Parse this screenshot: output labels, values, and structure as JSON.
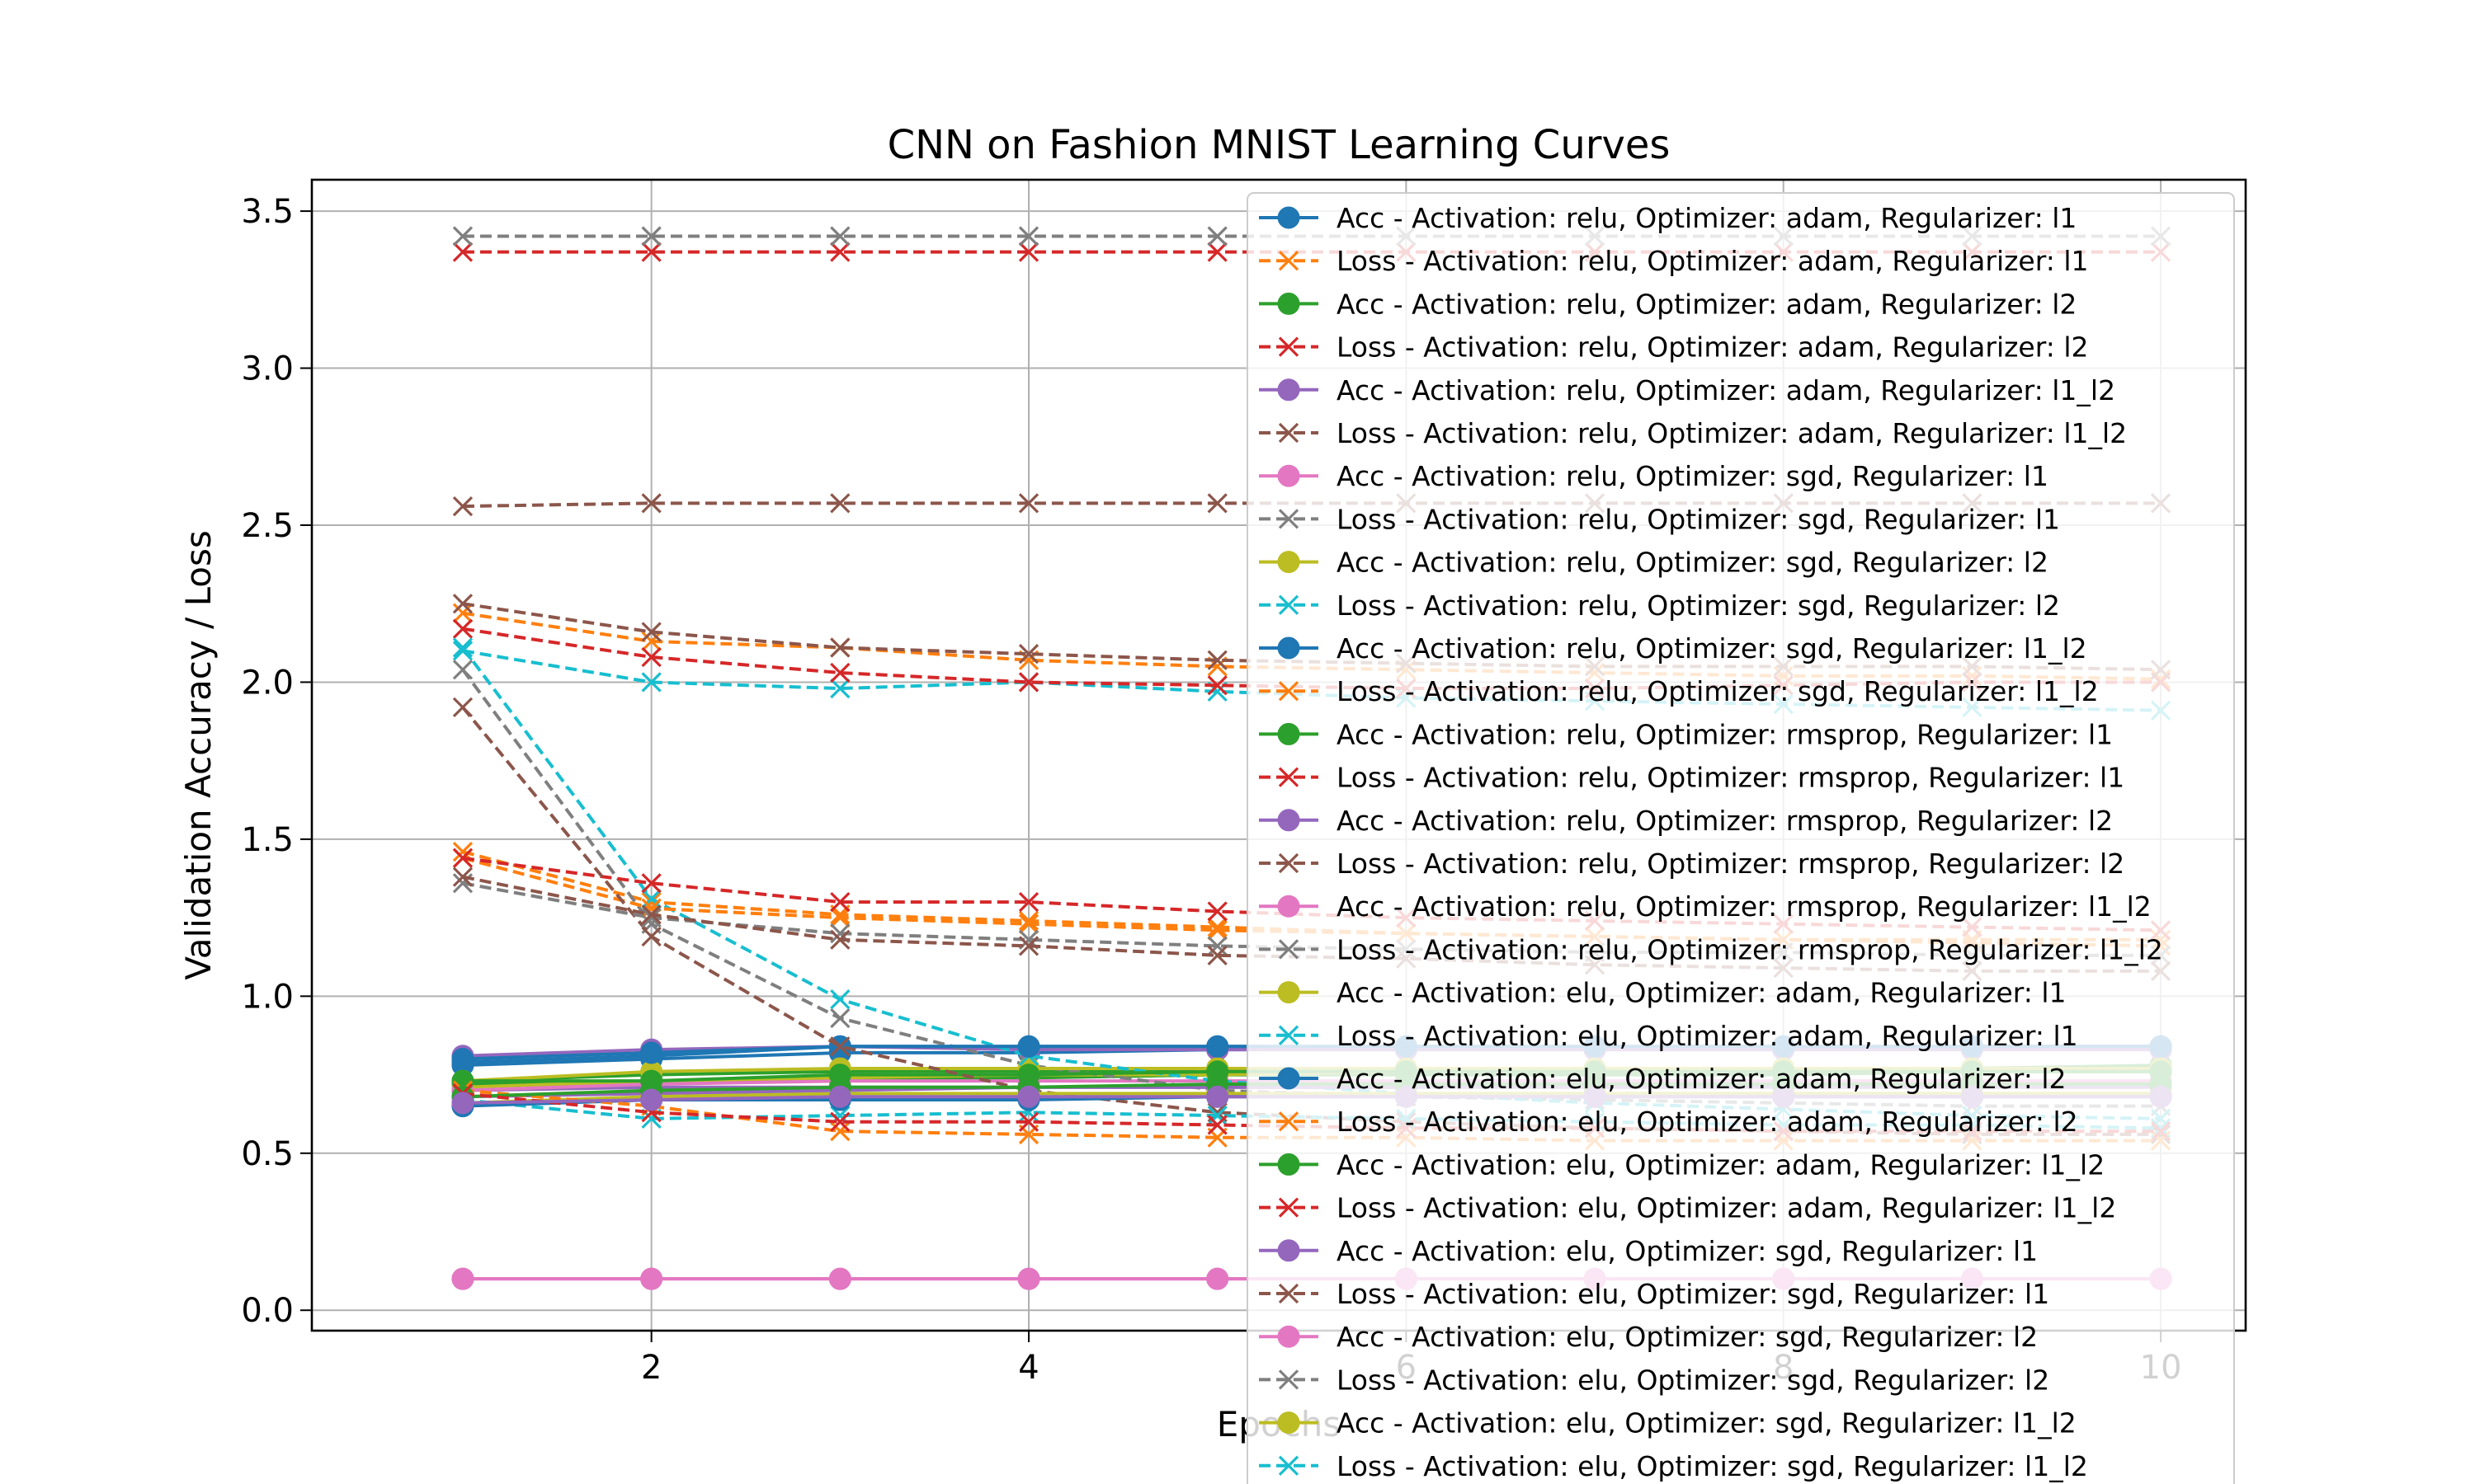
{
  "chart_data": {
    "type": "line",
    "title": "CNN on Fashion MNIST Learning Curves",
    "xlabel": "Epochs",
    "ylabel": "Validation Accuracy / Loss",
    "xlim": [
      0.2,
      10.45
    ],
    "ylim": [
      -0.065,
      3.6
    ],
    "xticks": [
      2,
      4,
      6,
      8,
      10
    ],
    "yticks": [
      0.0,
      0.5,
      1.0,
      1.5,
      2.0,
      2.5,
      3.0,
      3.5
    ],
    "grid": true,
    "legend_position": "top-right",
    "x": [
      1,
      2,
      3,
      4,
      5,
      6,
      7,
      8,
      9,
      10
    ],
    "series": [
      {
        "name": "Acc - Activation: relu, Optimizer: adam, Regularizer: l1",
        "color": "#1f77b4",
        "style": "acc",
        "values": [
          0.79,
          0.81,
          0.84,
          0.84,
          0.84,
          0.84,
          0.84,
          0.84,
          0.84,
          0.84
        ]
      },
      {
        "name": "Loss - Activation: relu, Optimizer: adam, Regularizer: l1",
        "color": "#ff7f0e",
        "style": "loss",
        "values": [
          1.46,
          1.3,
          1.26,
          1.24,
          1.22,
          1.2,
          1.19,
          1.18,
          1.17,
          1.16
        ]
      },
      {
        "name": "Acc - Activation: relu, Optimizer: adam, Regularizer: l2",
        "color": "#2ca02c",
        "style": "acc",
        "values": [
          0.72,
          0.73,
          0.74,
          0.74,
          0.75,
          0.75,
          0.75,
          0.75,
          0.76,
          0.76
        ]
      },
      {
        "name": "Loss - Activation: relu, Optimizer: adam, Regularizer: l2",
        "color": "#d62728",
        "style": "loss",
        "values": [
          3.37,
          3.37,
          3.37,
          3.37,
          3.37,
          3.37,
          3.37,
          3.37,
          3.37,
          3.37
        ]
      },
      {
        "name": "Acc - Activation: relu, Optimizer: adam, Regularizer: l1_l2",
        "color": "#9467bd",
        "style": "acc",
        "values": [
          0.7,
          0.71,
          0.71,
          0.71,
          0.71,
          0.71,
          0.71,
          0.71,
          0.71,
          0.71
        ]
      },
      {
        "name": "Loss - Activation: relu, Optimizer: adam, Regularizer: l1_l2",
        "color": "#8c564b",
        "style": "loss",
        "values": [
          2.56,
          2.57,
          2.57,
          2.57,
          2.57,
          2.57,
          2.57,
          2.57,
          2.57,
          2.57
        ]
      },
      {
        "name": "Acc - Activation: relu, Optimizer: sgd, Regularizer: l1",
        "color": "#e377c2",
        "style": "acc",
        "values": [
          0.1,
          0.1,
          0.1,
          0.1,
          0.1,
          0.1,
          0.1,
          0.1,
          0.1,
          0.1
        ]
      },
      {
        "name": "Loss - Activation: relu, Optimizer: sgd, Regularizer: l1",
        "color": "#7f7f7f",
        "style": "loss",
        "values": [
          3.42,
          3.42,
          3.42,
          3.42,
          3.42,
          3.42,
          3.42,
          3.42,
          3.42,
          3.42
        ]
      },
      {
        "name": "Acc - Activation: relu, Optimizer: sgd, Regularizer: l2",
        "color": "#bcbd22",
        "style": "acc",
        "values": [
          0.71,
          0.73,
          0.74,
          0.75,
          0.75,
          0.76,
          0.76,
          0.76,
          0.76,
          0.76
        ]
      },
      {
        "name": "Loss - Activation: relu, Optimizer: sgd, Regularizer: l2",
        "color": "#17becf",
        "style": "loss",
        "values": [
          2.1,
          2.0,
          1.98,
          2.0,
          1.97,
          1.95,
          1.94,
          1.93,
          1.92,
          1.91
        ]
      },
      {
        "name": "Acc - Activation: relu, Optimizer: sgd, Regularizer: l1_l2",
        "color": "#1f77b4",
        "style": "acc",
        "values": [
          0.78,
          0.8,
          0.82,
          0.82,
          0.83,
          0.83,
          0.83,
          0.83,
          0.84,
          0.84
        ]
      },
      {
        "name": "Loss - Activation: relu, Optimizer: sgd, Regularizer: l1_l2",
        "color": "#ff7f0e",
        "style": "loss",
        "values": [
          2.22,
          2.13,
          2.11,
          2.07,
          2.05,
          2.04,
          2.03,
          2.02,
          2.02,
          2.01
        ]
      },
      {
        "name": "Acc - Activation: relu, Optimizer: rmsprop, Regularizer: l1",
        "color": "#2ca02c",
        "style": "acc",
        "values": [
          0.73,
          0.75,
          0.76,
          0.76,
          0.77,
          0.77,
          0.77,
          0.77,
          0.77,
          0.78
        ]
      },
      {
        "name": "Loss - Activation: relu, Optimizer: rmsprop, Regularizer: l1",
        "color": "#d62728",
        "style": "loss",
        "values": [
          2.17,
          2.08,
          2.03,
          2.0,
          1.99,
          1.98,
          1.98,
          1.99,
          2.0,
          2.0
        ]
      },
      {
        "name": "Acc - Activation: relu, Optimizer: rmsprop, Regularizer: l2",
        "color": "#9467bd",
        "style": "acc",
        "values": [
          0.81,
          0.83,
          0.84,
          0.83,
          0.83,
          0.83,
          0.83,
          0.83,
          0.83,
          0.83
        ]
      },
      {
        "name": "Loss - Activation: relu, Optimizer: rmsprop, Regularizer: l2",
        "color": "#8c564b",
        "style": "loss",
        "values": [
          2.25,
          2.16,
          2.11,
          2.09,
          2.07,
          2.06,
          2.05,
          2.05,
          2.05,
          2.04
        ]
      },
      {
        "name": "Acc - Activation: relu, Optimizer: rmsprop, Regularizer: l1_l2",
        "color": "#e377c2",
        "style": "acc",
        "values": [
          0.7,
          0.72,
          0.73,
          0.73,
          0.73,
          0.73,
          0.73,
          0.73,
          0.73,
          0.73
        ]
      },
      {
        "name": "Loss - Activation: relu, Optimizer: rmsprop, Regularizer: l1_l2",
        "color": "#7f7f7f",
        "style": "loss",
        "values": [
          2.04,
          1.23,
          0.93,
          0.78,
          0.7,
          0.68,
          0.67,
          0.66,
          0.65,
          0.65
        ]
      },
      {
        "name": "Acc - Activation: elu, Optimizer: adam, Regularizer: l1",
        "color": "#bcbd22",
        "style": "acc",
        "values": [
          0.73,
          0.76,
          0.77,
          0.77,
          0.77,
          0.77,
          0.77,
          0.77,
          0.77,
          0.77
        ]
      },
      {
        "name": "Loss - Activation: elu, Optimizer: adam, Regularizer: l1",
        "color": "#17becf",
        "style": "loss",
        "values": [
          2.11,
          1.31,
          0.99,
          0.81,
          0.73,
          0.69,
          0.66,
          0.64,
          0.62,
          0.61
        ]
      },
      {
        "name": "Acc - Activation: elu, Optimizer: adam, Regularizer: l2",
        "color": "#1f77b4",
        "style": "acc",
        "values": [
          0.8,
          0.82,
          0.84,
          0.84,
          0.84,
          0.84,
          0.84,
          0.84,
          0.84,
          0.84
        ]
      },
      {
        "name": "Loss - Activation: elu, Optimizer: adam, Regularizer: l2",
        "color": "#ff7f0e",
        "style": "loss",
        "values": [
          1.44,
          1.28,
          1.25,
          1.23,
          1.21,
          1.2,
          1.19,
          1.18,
          1.18,
          1.18
        ]
      },
      {
        "name": "Acc - Activation: elu, Optimizer: adam, Regularizer: l1_l2",
        "color": "#2ca02c",
        "style": "acc",
        "values": [
          0.73,
          0.73,
          0.75,
          0.75,
          0.76,
          0.76,
          0.76,
          0.76,
          0.76,
          0.76
        ]
      },
      {
        "name": "Loss - Activation: elu, Optimizer: adam, Regularizer: l1_l2",
        "color": "#d62728",
        "style": "loss",
        "values": [
          1.44,
          1.36,
          1.3,
          1.3,
          1.27,
          1.25,
          1.24,
          1.23,
          1.22,
          1.21
        ]
      },
      {
        "name": "Acc - Activation: elu, Optimizer: sgd, Regularizer: l1",
        "color": "#9467bd",
        "style": "acc",
        "values": [
          0.68,
          0.69,
          0.7,
          0.71,
          0.71,
          0.71,
          0.72,
          0.72,
          0.72,
          0.72
        ]
      },
      {
        "name": "Loss - Activation: elu, Optimizer: sgd, Regularizer: l1",
        "color": "#8c564b",
        "style": "loss",
        "values": [
          1.92,
          1.19,
          0.84,
          0.7,
          0.63,
          0.6,
          0.58,
          0.57,
          0.56,
          0.56
        ]
      },
      {
        "name": "Acc - Activation: elu, Optimizer: sgd, Regularizer: l2",
        "color": "#e377c2",
        "style": "acc",
        "values": [
          0.1,
          0.1,
          0.1,
          0.1,
          0.1,
          0.1,
          0.1,
          0.1,
          0.1,
          0.1
        ]
      },
      {
        "name": "Loss - Activation: elu, Optimizer: sgd, Regularizer: l2",
        "color": "#7f7f7f",
        "style": "loss",
        "values": [
          1.36,
          1.25,
          1.2,
          1.18,
          1.16,
          1.15,
          1.14,
          1.14,
          1.13,
          1.13
        ]
      },
      {
        "name": "Acc - Activation: elu, Optimizer: sgd, Regularizer: l1_l2",
        "color": "#bcbd22",
        "style": "acc",
        "values": [
          0.66,
          0.68,
          0.69,
          0.69,
          0.69,
          0.69,
          0.69,
          0.69,
          0.69,
          0.69
        ]
      },
      {
        "name": "Loss - Activation: elu, Optimizer: sgd, Regularizer: l1_l2",
        "color": "#17becf",
        "style": "loss",
        "values": [
          0.67,
          0.61,
          0.62,
          0.63,
          0.62,
          0.61,
          0.6,
          0.59,
          0.59,
          0.58
        ]
      },
      {
        "name": "",
        "color": "#1f77b4",
        "style": "acc",
        "values": [
          0.65,
          0.67,
          0.67,
          0.67,
          0.68,
          0.68,
          0.68,
          0.68,
          0.68,
          0.68
        ]
      },
      {
        "name": "",
        "color": "#ff7f0e",
        "style": "loss",
        "values": [
          0.7,
          0.65,
          0.57,
          0.56,
          0.55,
          0.55,
          0.54,
          0.54,
          0.54,
          0.54
        ]
      },
      {
        "name": "",
        "color": "#2ca02c",
        "style": "acc",
        "values": [
          0.68,
          0.7,
          0.71,
          0.71,
          0.72,
          0.72,
          0.72,
          0.72,
          0.72,
          0.72
        ]
      },
      {
        "name": "",
        "color": "#d62728",
        "style": "loss",
        "values": [
          0.69,
          0.63,
          0.6,
          0.6,
          0.59,
          0.58,
          0.58,
          0.57,
          0.57,
          0.57
        ]
      },
      {
        "name": "",
        "color": "#9467bd",
        "style": "acc",
        "values": [
          0.66,
          0.67,
          0.68,
          0.68,
          0.68,
          0.68,
          0.68,
          0.68,
          0.68,
          0.68
        ]
      },
      {
        "name": "",
        "color": "#8c564b",
        "style": "loss",
        "values": [
          1.38,
          1.26,
          1.18,
          1.16,
          1.13,
          1.12,
          1.1,
          1.09,
          1.08,
          1.08
        ]
      }
    ]
  }
}
